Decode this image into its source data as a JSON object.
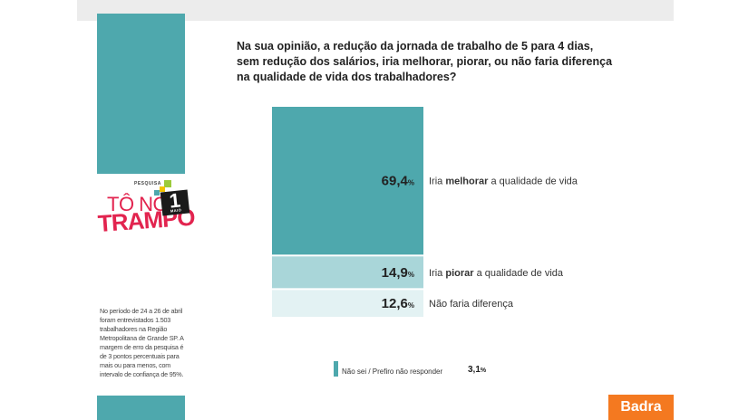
{
  "question": "Na sua opinião, a redução da jornada de trabalho de 5 para 4 dias, sem redução dos salários, iria melhorar, piorar, ou não faria diferença na qualidade de vida dos trabalhadores?",
  "logo": {
    "pesquisa": "PESQUISA",
    "line1": "TÔ NO",
    "line2": "TRAMPO",
    "badge_number": "1",
    "badge_month": "MAIO"
  },
  "methodology_note": "No período de 24 a 26 de abril foram entrevistados 1.503 trabalhadores na Região Metropolitana de Grande SP. A margem de erro da pesquisa é de 3 pontos percentuais para mais ou para menos, com intervalo de confiança de 95%.",
  "brand": "Badra",
  "colors": {
    "teal": "#4ea8ad",
    "light_teal": "#a9d6d9",
    "pale_teal": "#e3f2f3",
    "accent_red": "#e2244f",
    "brand_orange": "#f47920"
  },
  "chart_data": {
    "type": "bar",
    "stacked": true,
    "orientation": "vertical",
    "unit": "%",
    "categories": [
      "Iria melhorar a qualidade de vida",
      "Iria piorar a qualidade de vida",
      "Não faria diferença",
      "Não sei / Prefiro não responder"
    ],
    "values": [
      69.4,
      14.9,
      12.6,
      3.1
    ],
    "display_values": [
      "69,4",
      "14,9",
      "12,6",
      "3,1"
    ],
    "label_parts": [
      {
        "pre": "Iria ",
        "bold": "melhorar",
        "post": " a qualidade de vida"
      },
      {
        "pre": "Iria ",
        "bold": "piorar",
        "post": " a qualidade de vida"
      },
      {
        "pre": "Não faria diferença",
        "bold": "",
        "post": ""
      },
      {
        "pre": "Não sei / Prefiro não responder",
        "bold": "",
        "post": ""
      }
    ],
    "colors": [
      "#4ea8ad",
      "#a9d6d9",
      "#e3f2f3",
      "#4ea8ad"
    ],
    "unit_symbol": "%"
  }
}
